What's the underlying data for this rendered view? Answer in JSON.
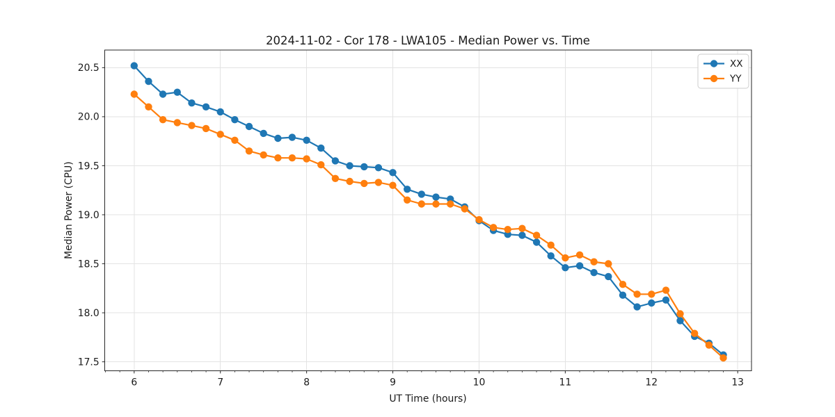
{
  "figure": {
    "title": "2024-11-02 - Cor 178 - LWA105 - Median Power vs. Time",
    "xlabel": "UT Time (hours)",
    "ylabel": "Median Power (CPU)"
  },
  "legend": {
    "position": "upper right",
    "items": [
      {
        "label": "XX",
        "color": "#1f77b4"
      },
      {
        "label": "YY",
        "color": "#ff7f0e"
      }
    ]
  },
  "colors": {
    "series_xx": "#1f77b4",
    "series_yy": "#ff7f0e",
    "grid": "#e3e3e3",
    "spine": "#262626",
    "text": "#1a1a1a",
    "legend_border": "#cccccc",
    "background": "#ffffff"
  },
  "chart_data": {
    "type": "line",
    "title": "2024-11-02 - Cor 178 - LWA105 - Median Power vs. Time",
    "xlabel": "UT Time (hours)",
    "ylabel": "Median Power (CPU)",
    "xlim": [
      5.66,
      13.16
    ],
    "ylim": [
      17.41,
      20.68
    ],
    "x_major_ticks": [
      6,
      7,
      8,
      9,
      10,
      11,
      12,
      13
    ],
    "x_minor_divisions": 6,
    "y_major_ticks": [
      17.5,
      18.0,
      18.5,
      19.0,
      19.5,
      20.0,
      20.5
    ],
    "grid": "major",
    "legend_position": "upper right",
    "marker": "circle",
    "x": [
      6,
      6.167,
      6.333,
      6.5,
      6.667,
      6.833,
      7,
      7.167,
      7.333,
      7.5,
      7.667,
      7.833,
      8,
      8.167,
      8.333,
      8.5,
      8.667,
      8.833,
      9,
      9.167,
      9.333,
      9.5,
      9.667,
      9.833,
      10,
      10.167,
      10.333,
      10.5,
      10.667,
      10.833,
      11,
      11.167,
      11.333,
      11.5,
      11.667,
      11.833,
      12,
      12.167,
      12.333,
      12.5,
      12.667,
      12.833
    ],
    "series": [
      {
        "name": "XX",
        "color": "#1f77b4",
        "values": [
          20.52,
          20.36,
          20.23,
          20.25,
          20.14,
          20.1,
          20.05,
          19.97,
          19.9,
          19.83,
          19.78,
          19.79,
          19.76,
          19.68,
          19.55,
          19.5,
          19.49,
          19.48,
          19.43,
          19.26,
          19.21,
          19.18,
          19.16,
          19.08,
          18.94,
          18.84,
          18.8,
          18.79,
          18.72,
          18.58,
          18.46,
          18.48,
          18.41,
          18.37,
          18.18,
          18.06,
          18.1,
          18.13,
          17.92,
          17.76,
          17.69,
          17.57
        ]
      },
      {
        "name": "YY",
        "color": "#ff7f0e",
        "values": [
          20.23,
          20.1,
          19.97,
          19.94,
          19.91,
          19.88,
          19.82,
          19.76,
          19.65,
          19.61,
          19.58,
          19.58,
          19.57,
          19.51,
          19.37,
          19.34,
          19.32,
          19.33,
          19.3,
          19.15,
          19.11,
          19.11,
          19.11,
          19.06,
          18.95,
          18.87,
          18.85,
          18.86,
          18.79,
          18.69,
          18.56,
          18.59,
          18.52,
          18.5,
          18.29,
          18.19,
          18.19,
          18.23,
          17.99,
          17.79,
          17.67,
          17.54
        ]
      }
    ]
  }
}
